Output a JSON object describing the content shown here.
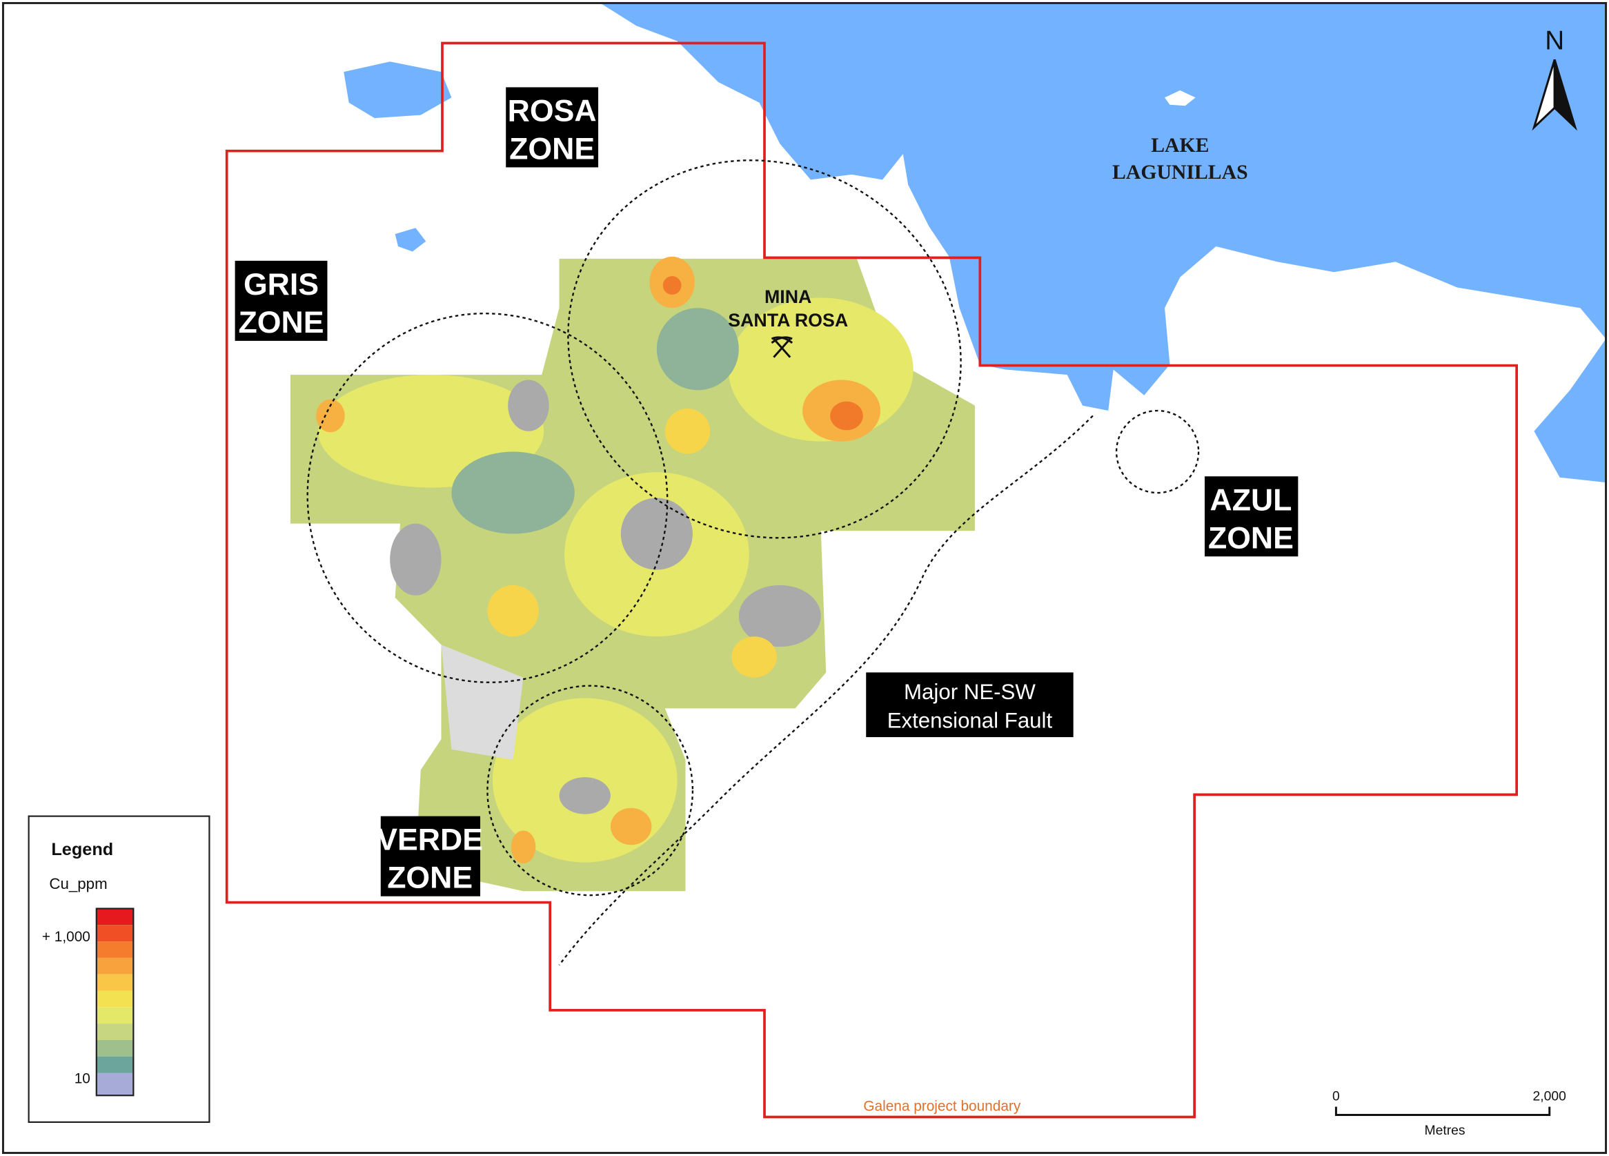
{
  "map": {
    "north": "N",
    "lake_label": [
      "LAKE",
      "LAGUNILLAS"
    ],
    "mine_label": [
      "MINA",
      "SANTA ROSA"
    ],
    "zones": [
      {
        "lines": [
          "ROSA",
          "ZONE"
        ]
      },
      {
        "lines": [
          "GRIS",
          "ZONE"
        ]
      },
      {
        "lines": [
          "AZUL",
          "ZONE"
        ]
      },
      {
        "lines": [
          "VERDE",
          "ZONE"
        ]
      }
    ],
    "fault_label": [
      "Major NE-SW",
      "Extensional Fault"
    ],
    "boundary_label": "Galena project boundary",
    "legend": {
      "title": "Legend",
      "field": "Cu_ppm",
      "high_label": "+ 1,000",
      "low_label": "10"
    },
    "scale_bar": {
      "start": "0",
      "end": "2,000",
      "unit": "Metres"
    }
  }
}
